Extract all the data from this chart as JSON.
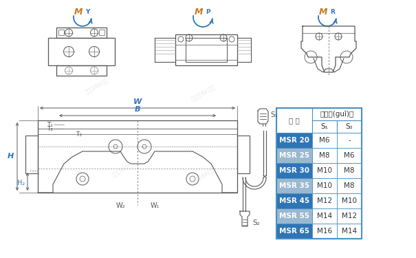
{
  "bg_color": "#ffffff",
  "table_header_bg": "#4a90c4",
  "table_row_blue_bg": "#2e75b6",
  "table_row_gray_bg": "#9ab8d0",
  "table_border": "#4a90c4",
  "table_title": "螺栓規(guī)格",
  "rows": [
    [
      "MSR 20",
      "M6",
      "-"
    ],
    [
      "MSR 25",
      "M8",
      "M6"
    ],
    [
      "MSR 30",
      "M10",
      "M8"
    ],
    [
      "MSR 35",
      "M10",
      "M8"
    ],
    [
      "MSR 45",
      "M12",
      "M10"
    ],
    [
      "MSR 55",
      "M14",
      "M12"
    ],
    [
      "MSR 65",
      "M16",
      "M14"
    ]
  ],
  "row_colors": [
    "blue",
    "gray",
    "blue",
    "gray",
    "blue",
    "gray",
    "blue"
  ],
  "watermark": "雅威達(dá)傳動"
}
